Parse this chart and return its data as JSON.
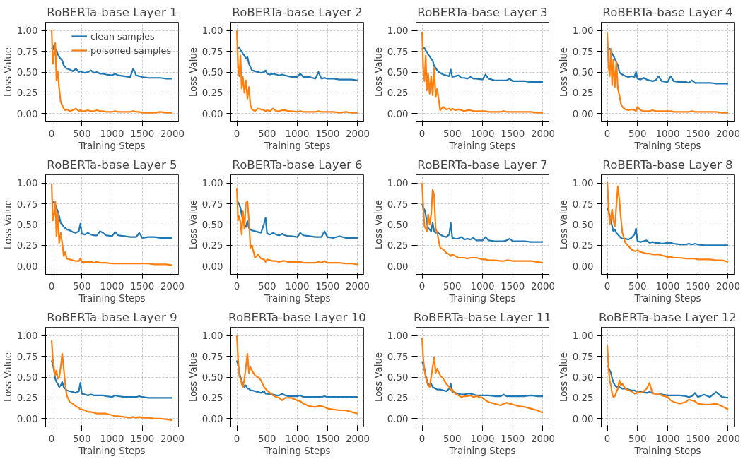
{
  "chart_data": [
    {
      "type": "line",
      "title": "RoBERTa-base Layer 1",
      "xlabel": "Training Steps",
      "ylabel": "Loss Value",
      "legend": "top right",
      "grid": true,
      "xlim": [
        -100,
        2100
      ],
      "ylim": [
        -0.1,
        1.1
      ],
      "xticks": [
        0,
        500,
        1000,
        1500,
        2000
      ],
      "yticks": [
        {
          "value": 0,
          "label": "0.00"
        },
        {
          "value": 0.25,
          "label": "0.25"
        },
        {
          "value": 0.5,
          "label": "0.50"
        },
        {
          "value": 0.75,
          "label": "0.75"
        },
        {
          "value": 1,
          "label": "1.00"
        }
      ],
      "x": [
        0,
        20,
        40,
        60,
        80,
        100,
        125,
        150,
        175,
        200,
        225,
        250,
        300,
        350,
        400,
        450,
        475,
        500,
        550,
        600,
        650,
        700,
        750,
        800,
        850,
        900,
        1000,
        1050,
        1100,
        1200,
        1300,
        1350,
        1400,
        1450,
        1500,
        1600,
        1700,
        1800,
        1900,
        2000
      ],
      "series": [
        {
          "name": "clean samples",
          "color": "#1f77b4",
          "values": [
            0.79,
            0.77,
            0.82,
            0.78,
            0.76,
            0.72,
            0.68,
            0.66,
            0.64,
            0.58,
            0.56,
            0.54,
            0.53,
            0.51,
            0.54,
            0.5,
            0.51,
            0.5,
            0.49,
            0.5,
            0.52,
            0.49,
            0.5,
            0.48,
            0.48,
            0.47,
            0.46,
            0.48,
            0.46,
            0.45,
            0.44,
            0.54,
            0.46,
            0.45,
            0.44,
            0.43,
            0.43,
            0.43,
            0.42,
            0.42
          ]
        },
        {
          "name": "poisoned samples",
          "color": "#ff7f0e",
          "values": [
            1.01,
            0.6,
            0.72,
            0.85,
            0.4,
            0.51,
            0.3,
            0.14,
            0.1,
            0.06,
            0.04,
            0.05,
            0.03,
            0.04,
            0.06,
            0.03,
            0.04,
            0.03,
            0.03,
            0.04,
            0.03,
            0.03,
            0.04,
            0.03,
            0.03,
            0.02,
            0.02,
            0.03,
            0.02,
            0.02,
            0.02,
            0.03,
            0.02,
            0.02,
            0.01,
            0.01,
            0.01,
            0.02,
            0.01,
            0.01
          ]
        }
      ]
    },
    {
      "type": "line",
      "title": "RoBERTa-base Layer 2",
      "xlabel": "Training Steps",
      "ylabel": "Loss Value",
      "grid": true,
      "xlim": [
        -100,
        2100
      ],
      "ylim": [
        -0.1,
        1.1
      ],
      "xticks": [
        0,
        500,
        1000,
        1500,
        2000
      ],
      "yticks": [
        {
          "value": 0,
          "label": "0.00"
        },
        {
          "value": 0.25,
          "label": "0.25"
        },
        {
          "value": 0.5,
          "label": "0.50"
        },
        {
          "value": 0.75,
          "label": "0.75"
        },
        {
          "value": 1,
          "label": "1.00"
        }
      ],
      "x": [
        0,
        20,
        40,
        60,
        80,
        100,
        125,
        150,
        175,
        200,
        225,
        250,
        300,
        350,
        400,
        450,
        475,
        500,
        550,
        600,
        650,
        700,
        750,
        800,
        850,
        900,
        1000,
        1050,
        1100,
        1200,
        1300,
        1350,
        1400,
        1450,
        1500,
        1600,
        1700,
        1800,
        1900,
        2000
      ],
      "series": [
        {
          "color": "#1f77b4",
          "values": [
            0.79,
            0.78,
            0.8,
            0.76,
            0.75,
            0.72,
            0.7,
            0.66,
            0.68,
            0.6,
            0.56,
            0.52,
            0.51,
            0.5,
            0.49,
            0.5,
            0.52,
            0.48,
            0.47,
            0.48,
            0.47,
            0.46,
            0.47,
            0.46,
            0.45,
            0.44,
            0.44,
            0.48,
            0.44,
            0.44,
            0.42,
            0.5,
            0.42,
            0.43,
            0.42,
            0.42,
            0.41,
            0.41,
            0.41,
            0.4
          ]
        },
        {
          "color": "#ff7f0e",
          "values": [
            1.0,
            0.56,
            0.45,
            0.7,
            0.3,
            0.44,
            0.25,
            0.4,
            0.18,
            0.32,
            0.1,
            0.05,
            0.03,
            0.06,
            0.05,
            0.04,
            0.03,
            0.04,
            0.03,
            0.06,
            0.03,
            0.03,
            0.04,
            0.04,
            0.03,
            0.03,
            0.02,
            0.03,
            0.02,
            0.02,
            0.02,
            0.03,
            0.02,
            0.02,
            0.02,
            0.02,
            0.01,
            0.02,
            0.01,
            0.01
          ]
        }
      ]
    },
    {
      "type": "line",
      "title": "RoBERTa-base Layer 3",
      "xlabel": "Training Steps",
      "ylabel": "Loss Value",
      "grid": true,
      "xlim": [
        -100,
        2100
      ],
      "ylim": [
        -0.1,
        1.1
      ],
      "xticks": [
        0,
        500,
        1000,
        1500,
        2000
      ],
      "yticks": [
        {
          "value": 0,
          "label": "0.00"
        },
        {
          "value": 0.25,
          "label": "0.25"
        },
        {
          "value": 0.5,
          "label": "0.50"
        },
        {
          "value": 0.75,
          "label": "0.75"
        },
        {
          "value": 1,
          "label": "1.00"
        }
      ],
      "x": [
        0,
        20,
        40,
        60,
        80,
        100,
        125,
        150,
        175,
        200,
        225,
        250,
        300,
        350,
        400,
        450,
        475,
        500,
        550,
        600,
        650,
        700,
        750,
        800,
        850,
        900,
        1000,
        1050,
        1100,
        1200,
        1300,
        1350,
        1400,
        1450,
        1500,
        1600,
        1700,
        1800,
        1900,
        2000
      ],
      "series": [
        {
          "color": "#1f77b4",
          "values": [
            0.79,
            0.78,
            0.79,
            0.76,
            0.74,
            0.71,
            0.69,
            0.66,
            0.64,
            0.57,
            0.55,
            0.52,
            0.49,
            0.47,
            0.46,
            0.45,
            0.53,
            0.44,
            0.45,
            0.46,
            0.43,
            0.43,
            0.42,
            0.44,
            0.42,
            0.42,
            0.41,
            0.47,
            0.42,
            0.4,
            0.4,
            0.4,
            0.4,
            0.42,
            0.39,
            0.39,
            0.39,
            0.38,
            0.38,
            0.38
          ]
        },
        {
          "color": "#ff7f0e",
          "values": [
            0.98,
            0.52,
            0.39,
            0.7,
            0.28,
            0.48,
            0.24,
            0.45,
            0.22,
            0.55,
            0.2,
            0.3,
            0.04,
            0.08,
            0.05,
            0.06,
            0.04,
            0.06,
            0.04,
            0.05,
            0.04,
            0.03,
            0.04,
            0.04,
            0.03,
            0.03,
            0.03,
            0.03,
            0.02,
            0.02,
            0.02,
            0.03,
            0.02,
            0.02,
            0.02,
            0.02,
            0.02,
            0.02,
            0.01,
            0.01
          ]
        }
      ]
    },
    {
      "type": "line",
      "title": "RoBERTa-base Layer 4",
      "xlabel": "Training Steps",
      "ylabel": "Loss Value",
      "grid": true,
      "xlim": [
        -100,
        2100
      ],
      "ylim": [
        -0.1,
        1.1
      ],
      "xticks": [
        0,
        500,
        1000,
        1500,
        2000
      ],
      "yticks": [
        {
          "value": 0,
          "label": "0.00"
        },
        {
          "value": 0.25,
          "label": "0.25"
        },
        {
          "value": 0.5,
          "label": "0.50"
        },
        {
          "value": 0.75,
          "label": "0.75"
        },
        {
          "value": 1,
          "label": "1.00"
        }
      ],
      "x": [
        0,
        20,
        40,
        60,
        80,
        100,
        125,
        150,
        175,
        200,
        225,
        250,
        300,
        350,
        400,
        450,
        475,
        500,
        550,
        600,
        650,
        700,
        750,
        800,
        850,
        900,
        1000,
        1050,
        1100,
        1200,
        1300,
        1350,
        1400,
        1450,
        1500,
        1600,
        1700,
        1800,
        1900,
        2000
      ],
      "series": [
        {
          "color": "#1f77b4",
          "values": [
            0.79,
            0.79,
            0.78,
            0.76,
            0.72,
            0.7,
            0.66,
            0.62,
            0.58,
            0.5,
            0.48,
            0.47,
            0.45,
            0.44,
            0.45,
            0.44,
            0.5,
            0.42,
            0.41,
            0.43,
            0.41,
            0.4,
            0.39,
            0.4,
            0.45,
            0.39,
            0.38,
            0.45,
            0.39,
            0.38,
            0.38,
            0.37,
            0.4,
            0.37,
            0.37,
            0.37,
            0.37,
            0.36,
            0.36,
            0.36
          ]
        },
        {
          "color": "#ff7f0e",
          "values": [
            0.97,
            0.57,
            0.45,
            0.78,
            0.34,
            0.65,
            0.32,
            0.62,
            0.3,
            0.22,
            0.12,
            0.08,
            0.05,
            0.04,
            0.05,
            0.04,
            0.03,
            0.08,
            0.04,
            0.03,
            0.03,
            0.03,
            0.04,
            0.03,
            0.03,
            0.03,
            0.03,
            0.03,
            0.02,
            0.02,
            0.02,
            0.02,
            0.03,
            0.02,
            0.02,
            0.02,
            0.02,
            0.02,
            0.01,
            0.01
          ]
        }
      ]
    },
    {
      "type": "line",
      "title": "RoBERTa-base Layer 5",
      "xlabel": "Training Steps",
      "ylabel": "Loss Value",
      "grid": true,
      "xlim": [
        -100,
        2100
      ],
      "ylim": [
        -0.1,
        1.1
      ],
      "xticks": [
        0,
        500,
        1000,
        1500,
        2000
      ],
      "yticks": [
        {
          "value": 0,
          "label": "0.00"
        },
        {
          "value": 0.25,
          "label": "0.25"
        },
        {
          "value": 0.5,
          "label": "0.50"
        },
        {
          "value": 0.75,
          "label": "0.75"
        },
        {
          "value": 1,
          "label": "1.00"
        }
      ],
      "x": [
        0,
        20,
        40,
        60,
        80,
        100,
        125,
        150,
        175,
        200,
        225,
        250,
        300,
        350,
        400,
        450,
        475,
        500,
        550,
        600,
        650,
        700,
        750,
        800,
        850,
        900,
        1000,
        1050,
        1100,
        1200,
        1300,
        1350,
        1400,
        1450,
        1500,
        1600,
        1700,
        1800,
        1900,
        2000
      ],
      "series": [
        {
          "color": "#1f77b4",
          "values": [
            0.79,
            0.78,
            0.77,
            0.74,
            0.7,
            0.66,
            0.6,
            0.52,
            0.5,
            0.47,
            0.46,
            0.44,
            0.43,
            0.41,
            0.4,
            0.42,
            0.51,
            0.39,
            0.38,
            0.4,
            0.38,
            0.37,
            0.37,
            0.42,
            0.4,
            0.37,
            0.36,
            0.41,
            0.37,
            0.36,
            0.35,
            0.35,
            0.35,
            0.4,
            0.34,
            0.35,
            0.35,
            0.34,
            0.34,
            0.34
          ]
        },
        {
          "color": "#ff7f0e",
          "values": [
            0.99,
            0.55,
            0.62,
            0.78,
            0.36,
            0.64,
            0.28,
            0.4,
            0.28,
            0.12,
            0.17,
            0.09,
            0.08,
            0.07,
            0.06,
            0.06,
            0.09,
            0.05,
            0.05,
            0.05,
            0.05,
            0.04,
            0.05,
            0.04,
            0.04,
            0.04,
            0.03,
            0.03,
            0.03,
            0.03,
            0.03,
            0.03,
            0.03,
            0.03,
            0.03,
            0.03,
            0.02,
            0.02,
            0.02,
            0.01
          ]
        }
      ]
    },
    {
      "type": "line",
      "title": "RoBERTa-base Layer 6",
      "xlabel": "Training Steps",
      "ylabel": "Loss Value",
      "grid": true,
      "xlim": [
        -100,
        2100
      ],
      "ylim": [
        -0.1,
        1.1
      ],
      "xticks": [
        0,
        500,
        1000,
        1500,
        2000
      ],
      "yticks": [
        {
          "value": 0,
          "label": "0.00"
        },
        {
          "value": 0.25,
          "label": "0.25"
        },
        {
          "value": 0.5,
          "label": "0.50"
        },
        {
          "value": 0.75,
          "label": "0.75"
        },
        {
          "value": 1,
          "label": "1.00"
        }
      ],
      "x": [
        0,
        20,
        40,
        60,
        80,
        100,
        125,
        150,
        175,
        200,
        225,
        250,
        300,
        350,
        400,
        450,
        475,
        500,
        550,
        600,
        650,
        700,
        750,
        800,
        850,
        900,
        1000,
        1050,
        1100,
        1200,
        1300,
        1350,
        1400,
        1450,
        1500,
        1600,
        1700,
        1800,
        1900,
        2000
      ],
      "series": [
        {
          "color": "#1f77b4",
          "values": [
            0.79,
            0.77,
            0.74,
            0.7,
            0.62,
            0.55,
            0.5,
            0.47,
            0.54,
            0.46,
            0.44,
            0.43,
            0.42,
            0.41,
            0.4,
            0.51,
            0.58,
            0.39,
            0.38,
            0.4,
            0.38,
            0.37,
            0.39,
            0.37,
            0.36,
            0.36,
            0.35,
            0.4,
            0.37,
            0.36,
            0.35,
            0.35,
            0.35,
            0.42,
            0.35,
            0.34,
            0.36,
            0.34,
            0.34,
            0.34
          ]
        },
        {
          "color": "#ff7f0e",
          "values": [
            0.94,
            0.55,
            0.6,
            0.52,
            0.38,
            0.66,
            0.45,
            0.76,
            0.78,
            0.55,
            0.22,
            0.25,
            0.1,
            0.14,
            0.09,
            0.08,
            0.05,
            0.08,
            0.07,
            0.06,
            0.06,
            0.05,
            0.06,
            0.06,
            0.05,
            0.05,
            0.05,
            0.05,
            0.04,
            0.04,
            0.04,
            0.05,
            0.04,
            0.06,
            0.04,
            0.04,
            0.04,
            0.03,
            0.03,
            0.02
          ]
        }
      ]
    },
    {
      "type": "line",
      "title": "RoBERTa-base Layer 7",
      "xlabel": "Training Steps",
      "ylabel": "Loss Value",
      "grid": true,
      "xlim": [
        -100,
        2100
      ],
      "ylim": [
        -0.1,
        1.1
      ],
      "xticks": [
        0,
        500,
        1000,
        1500,
        2000
      ],
      "yticks": [
        {
          "value": 0,
          "label": "0.00"
        },
        {
          "value": 0.25,
          "label": "0.25"
        },
        {
          "value": 0.5,
          "label": "0.50"
        },
        {
          "value": 0.75,
          "label": "0.75"
        },
        {
          "value": 1,
          "label": "1.00"
        }
      ],
      "x": [
        0,
        20,
        40,
        60,
        80,
        100,
        125,
        150,
        175,
        200,
        225,
        250,
        300,
        350,
        400,
        450,
        475,
        500,
        550,
        600,
        650,
        700,
        750,
        800,
        850,
        900,
        1000,
        1050,
        1100,
        1200,
        1300,
        1350,
        1400,
        1450,
        1500,
        1600,
        1700,
        1800,
        1900,
        2000
      ],
      "series": [
        {
          "color": "#1f77b4",
          "values": [
            0.75,
            0.7,
            0.68,
            0.62,
            0.52,
            0.46,
            0.44,
            0.42,
            0.52,
            0.42,
            0.4,
            0.41,
            0.38,
            0.36,
            0.35,
            0.38,
            0.52,
            0.34,
            0.33,
            0.33,
            0.35,
            0.32,
            0.33,
            0.32,
            0.34,
            0.31,
            0.31,
            0.35,
            0.31,
            0.3,
            0.3,
            0.3,
            0.31,
            0.33,
            0.3,
            0.3,
            0.3,
            0.29,
            0.29,
            0.29
          ]
        },
        {
          "color": "#ff7f0e",
          "values": [
            1.0,
            0.7,
            0.48,
            0.45,
            0.42,
            0.62,
            0.5,
            0.62,
            0.92,
            0.85,
            0.45,
            0.4,
            0.22,
            0.2,
            0.16,
            0.14,
            0.12,
            0.14,
            0.12,
            0.1,
            0.1,
            0.1,
            0.09,
            0.1,
            0.1,
            0.1,
            0.08,
            0.08,
            0.07,
            0.07,
            0.06,
            0.06,
            0.07,
            0.07,
            0.06,
            0.06,
            0.06,
            0.06,
            0.05,
            0.04
          ]
        }
      ]
    },
    {
      "type": "line",
      "title": "RoBERTa-base Layer 8",
      "xlabel": "Training Steps",
      "ylabel": "Loss Value",
      "grid": true,
      "xlim": [
        -100,
        2100
      ],
      "ylim": [
        -0.1,
        1.1
      ],
      "xticks": [
        0,
        500,
        1000,
        1500,
        2000
      ],
      "yticks": [
        {
          "value": 0,
          "label": "0.00"
        },
        {
          "value": 0.25,
          "label": "0.25"
        },
        {
          "value": 0.5,
          "label": "0.50"
        },
        {
          "value": 0.75,
          "label": "0.75"
        },
        {
          "value": 1,
          "label": "1.00"
        }
      ],
      "x": [
        0,
        20,
        40,
        60,
        80,
        100,
        125,
        150,
        175,
        200,
        225,
        250,
        300,
        350,
        400,
        450,
        475,
        500,
        550,
        600,
        650,
        700,
        750,
        800,
        850,
        900,
        1000,
        1050,
        1100,
        1200,
        1300,
        1350,
        1400,
        1450,
        1500,
        1600,
        1700,
        1800,
        1900,
        2000
      ],
      "series": [
        {
          "color": "#1f77b4",
          "values": [
            0.7,
            0.66,
            0.6,
            0.55,
            0.48,
            0.42,
            0.44,
            0.4,
            0.38,
            0.36,
            0.34,
            0.33,
            0.33,
            0.32,
            0.34,
            0.38,
            0.45,
            0.3,
            0.29,
            0.3,
            0.31,
            0.28,
            0.29,
            0.28,
            0.28,
            0.27,
            0.28,
            0.28,
            0.27,
            0.26,
            0.26,
            0.27,
            0.26,
            0.27,
            0.26,
            0.25,
            0.25,
            0.25,
            0.25,
            0.25
          ]
        },
        {
          "color": "#ff7f0e",
          "values": [
            1.01,
            0.72,
            0.5,
            0.6,
            0.68,
            0.55,
            0.48,
            0.72,
            0.96,
            0.8,
            0.58,
            0.4,
            0.28,
            0.24,
            0.2,
            0.18,
            0.18,
            0.19,
            0.17,
            0.16,
            0.15,
            0.15,
            0.14,
            0.14,
            0.14,
            0.13,
            0.11,
            0.11,
            0.1,
            0.1,
            0.09,
            0.09,
            0.09,
            0.09,
            0.08,
            0.08,
            0.08,
            0.07,
            0.07,
            0.05
          ]
        }
      ]
    },
    {
      "type": "line",
      "title": "RoBERTa-base Layer 9",
      "xlabel": "Training Steps",
      "ylabel": "Loss Value",
      "grid": true,
      "xlim": [
        -100,
        2100
      ],
      "ylim": [
        -0.1,
        1.1
      ],
      "xticks": [
        0,
        500,
        1000,
        1500,
        2000
      ],
      "yticks": [
        {
          "value": 0,
          "label": "0.00"
        },
        {
          "value": 0.25,
          "label": "0.25"
        },
        {
          "value": 0.5,
          "label": "0.50"
        },
        {
          "value": 0.75,
          "label": "0.75"
        },
        {
          "value": 1,
          "label": "1.00"
        }
      ],
      "x": [
        0,
        20,
        40,
        60,
        80,
        100,
        125,
        150,
        175,
        200,
        225,
        250,
        300,
        350,
        400,
        450,
        475,
        500,
        550,
        600,
        650,
        700,
        750,
        800,
        850,
        900,
        1000,
        1050,
        1100,
        1200,
        1300,
        1350,
        1400,
        1450,
        1500,
        1600,
        1700,
        1800,
        1900,
        2000
      ],
      "series": [
        {
          "color": "#1f77b4",
          "values": [
            0.7,
            0.65,
            0.58,
            0.48,
            0.44,
            0.42,
            0.38,
            0.4,
            0.44,
            0.38,
            0.36,
            0.34,
            0.33,
            0.32,
            0.31,
            0.33,
            0.43,
            0.3,
            0.29,
            0.28,
            0.29,
            0.28,
            0.28,
            0.28,
            0.28,
            0.27,
            0.26,
            0.28,
            0.27,
            0.26,
            0.26,
            0.26,
            0.26,
            0.27,
            0.26,
            0.25,
            0.25,
            0.25,
            0.25,
            0.25
          ]
        },
        {
          "color": "#ff7f0e",
          "values": [
            0.94,
            0.72,
            0.6,
            0.52,
            0.58,
            0.48,
            0.5,
            0.62,
            0.78,
            0.6,
            0.42,
            0.28,
            0.2,
            0.18,
            0.15,
            0.13,
            0.11,
            0.11,
            0.1,
            0.08,
            0.08,
            0.07,
            0.06,
            0.06,
            0.06,
            0.06,
            0.04,
            0.03,
            0.03,
            0.02,
            0.01,
            0.02,
            0.01,
            0.02,
            0.01,
            0.01,
            0.0,
            0.0,
            -0.01,
            -0.02
          ]
        }
      ]
    },
    {
      "type": "line",
      "title": "RoBERTa-base Layer 10",
      "xlabel": "Training Steps",
      "ylabel": "Loss Value",
      "grid": true,
      "xlim": [
        -100,
        2100
      ],
      "ylim": [
        -0.1,
        1.1
      ],
      "xticks": [
        0,
        500,
        1000,
        1500,
        2000
      ],
      "yticks": [
        {
          "value": 0,
          "label": "0.00"
        },
        {
          "value": 0.25,
          "label": "0.25"
        },
        {
          "value": 0.5,
          "label": "0.50"
        },
        {
          "value": 0.75,
          "label": "0.75"
        },
        {
          "value": 1,
          "label": "1.00"
        }
      ],
      "x": [
        0,
        20,
        40,
        60,
        80,
        100,
        125,
        150,
        175,
        200,
        225,
        250,
        300,
        350,
        400,
        450,
        475,
        500,
        550,
        600,
        650,
        700,
        750,
        800,
        850,
        900,
        1000,
        1050,
        1100,
        1200,
        1300,
        1350,
        1400,
        1450,
        1500,
        1600,
        1700,
        1800,
        1900,
        2000
      ],
      "series": [
        {
          "color": "#1f77b4",
          "values": [
            0.7,
            0.65,
            0.55,
            0.5,
            0.45,
            0.42,
            0.38,
            0.4,
            0.36,
            0.36,
            0.34,
            0.34,
            0.33,
            0.32,
            0.31,
            0.33,
            0.3,
            0.3,
            0.29,
            0.29,
            0.28,
            0.28,
            0.3,
            0.28,
            0.27,
            0.27,
            0.27,
            0.28,
            0.26,
            0.26,
            0.26,
            0.26,
            0.26,
            0.27,
            0.26,
            0.26,
            0.26,
            0.26,
            0.26,
            0.26
          ]
        },
        {
          "color": "#ff7f0e",
          "values": [
            1.0,
            0.72,
            0.52,
            0.48,
            0.42,
            0.38,
            0.48,
            0.62,
            0.78,
            0.55,
            0.62,
            0.58,
            0.52,
            0.5,
            0.46,
            0.38,
            0.36,
            0.34,
            0.31,
            0.28,
            0.26,
            0.25,
            0.22,
            0.25,
            0.25,
            0.25,
            0.22,
            0.21,
            0.18,
            0.15,
            0.14,
            0.15,
            0.15,
            0.14,
            0.12,
            0.11,
            0.1,
            0.1,
            0.08,
            0.06
          ]
        }
      ]
    },
    {
      "type": "line",
      "title": "RoBERTa-base Layer 11",
      "xlabel": "Training Steps",
      "ylabel": "Loss Value",
      "grid": true,
      "xlim": [
        -100,
        2100
      ],
      "ylim": [
        -0.1,
        1.1
      ],
      "xticks": [
        0,
        500,
        1000,
        1500,
        2000
      ],
      "yticks": [
        {
          "value": 0,
          "label": "0.00"
        },
        {
          "value": 0.25,
          "label": "0.25"
        },
        {
          "value": 0.5,
          "label": "0.50"
        },
        {
          "value": 0.75,
          "label": "0.75"
        },
        {
          "value": 1,
          "label": "1.00"
        }
      ],
      "x": [
        0,
        20,
        40,
        60,
        80,
        100,
        125,
        150,
        175,
        200,
        225,
        250,
        300,
        350,
        400,
        450,
        475,
        500,
        550,
        600,
        650,
        700,
        750,
        800,
        850,
        900,
        1000,
        1050,
        1100,
        1200,
        1300,
        1350,
        1400,
        1450,
        1500,
        1600,
        1700,
        1800,
        1900,
        2000
      ],
      "series": [
        {
          "color": "#1f77b4",
          "values": [
            0.69,
            0.65,
            0.6,
            0.52,
            0.46,
            0.42,
            0.4,
            0.42,
            0.38,
            0.37,
            0.36,
            0.35,
            0.35,
            0.34,
            0.33,
            0.36,
            0.42,
            0.32,
            0.31,
            0.3,
            0.29,
            0.29,
            0.3,
            0.3,
            0.29,
            0.28,
            0.28,
            0.28,
            0.28,
            0.27,
            0.27,
            0.29,
            0.27,
            0.27,
            0.27,
            0.27,
            0.27,
            0.28,
            0.27,
            0.27
          ]
        },
        {
          "color": "#ff7f0e",
          "values": [
            0.97,
            0.72,
            0.58,
            0.5,
            0.44,
            0.4,
            0.38,
            0.5,
            0.62,
            0.74,
            0.55,
            0.6,
            0.52,
            0.48,
            0.42,
            0.38,
            0.34,
            0.35,
            0.3,
            0.28,
            0.26,
            0.27,
            0.27,
            0.28,
            0.26,
            0.27,
            0.25,
            0.22,
            0.2,
            0.18,
            0.16,
            0.18,
            0.19,
            0.18,
            0.17,
            0.15,
            0.14,
            0.12,
            0.1,
            0.07
          ]
        }
      ]
    },
    {
      "type": "line",
      "title": "RoBERTa-base Layer 12",
      "xlabel": "Training Steps",
      "ylabel": "Loss Value",
      "grid": true,
      "xlim": [
        -100,
        2100
      ],
      "ylim": [
        -0.1,
        1.1
      ],
      "xticks": [
        0,
        500,
        1000,
        1500,
        2000
      ],
      "yticks": [
        {
          "value": 0,
          "label": "0.00"
        },
        {
          "value": 0.25,
          "label": "0.25"
        },
        {
          "value": 0.5,
          "label": "0.50"
        },
        {
          "value": 0.75,
          "label": "0.75"
        },
        {
          "value": 1,
          "label": "1.00"
        }
      ],
      "x": [
        0,
        20,
        40,
        60,
        80,
        100,
        125,
        150,
        175,
        200,
        225,
        250,
        300,
        350,
        400,
        450,
        475,
        500,
        550,
        600,
        650,
        700,
        750,
        800,
        850,
        900,
        1000,
        1050,
        1100,
        1200,
        1300,
        1350,
        1400,
        1450,
        1500,
        1600,
        1700,
        1800,
        1900,
        2000
      ],
      "series": [
        {
          "color": "#1f77b4",
          "values": [
            0.64,
            0.62,
            0.58,
            0.55,
            0.48,
            0.44,
            0.4,
            0.38,
            0.38,
            0.38,
            0.37,
            0.36,
            0.36,
            0.35,
            0.34,
            0.34,
            0.33,
            0.33,
            0.32,
            0.32,
            0.31,
            0.32,
            0.31,
            0.3,
            0.3,
            0.29,
            0.28,
            0.28,
            0.28,
            0.28,
            0.27,
            0.26,
            0.27,
            0.31,
            0.26,
            0.29,
            0.26,
            0.32,
            0.26,
            0.25
          ]
        },
        {
          "color": "#ff7f0e",
          "values": [
            0.88,
            0.62,
            0.45,
            0.4,
            0.3,
            0.26,
            0.27,
            0.32,
            0.36,
            0.46,
            0.4,
            0.42,
            0.36,
            0.34,
            0.33,
            0.3,
            0.3,
            0.32,
            0.31,
            0.33,
            0.36,
            0.43,
            0.3,
            0.3,
            0.3,
            0.28,
            0.26,
            0.22,
            0.2,
            0.18,
            0.2,
            0.23,
            0.22,
            0.21,
            0.18,
            0.17,
            0.17,
            0.18,
            0.15,
            0.11
          ]
        }
      ]
    }
  ]
}
